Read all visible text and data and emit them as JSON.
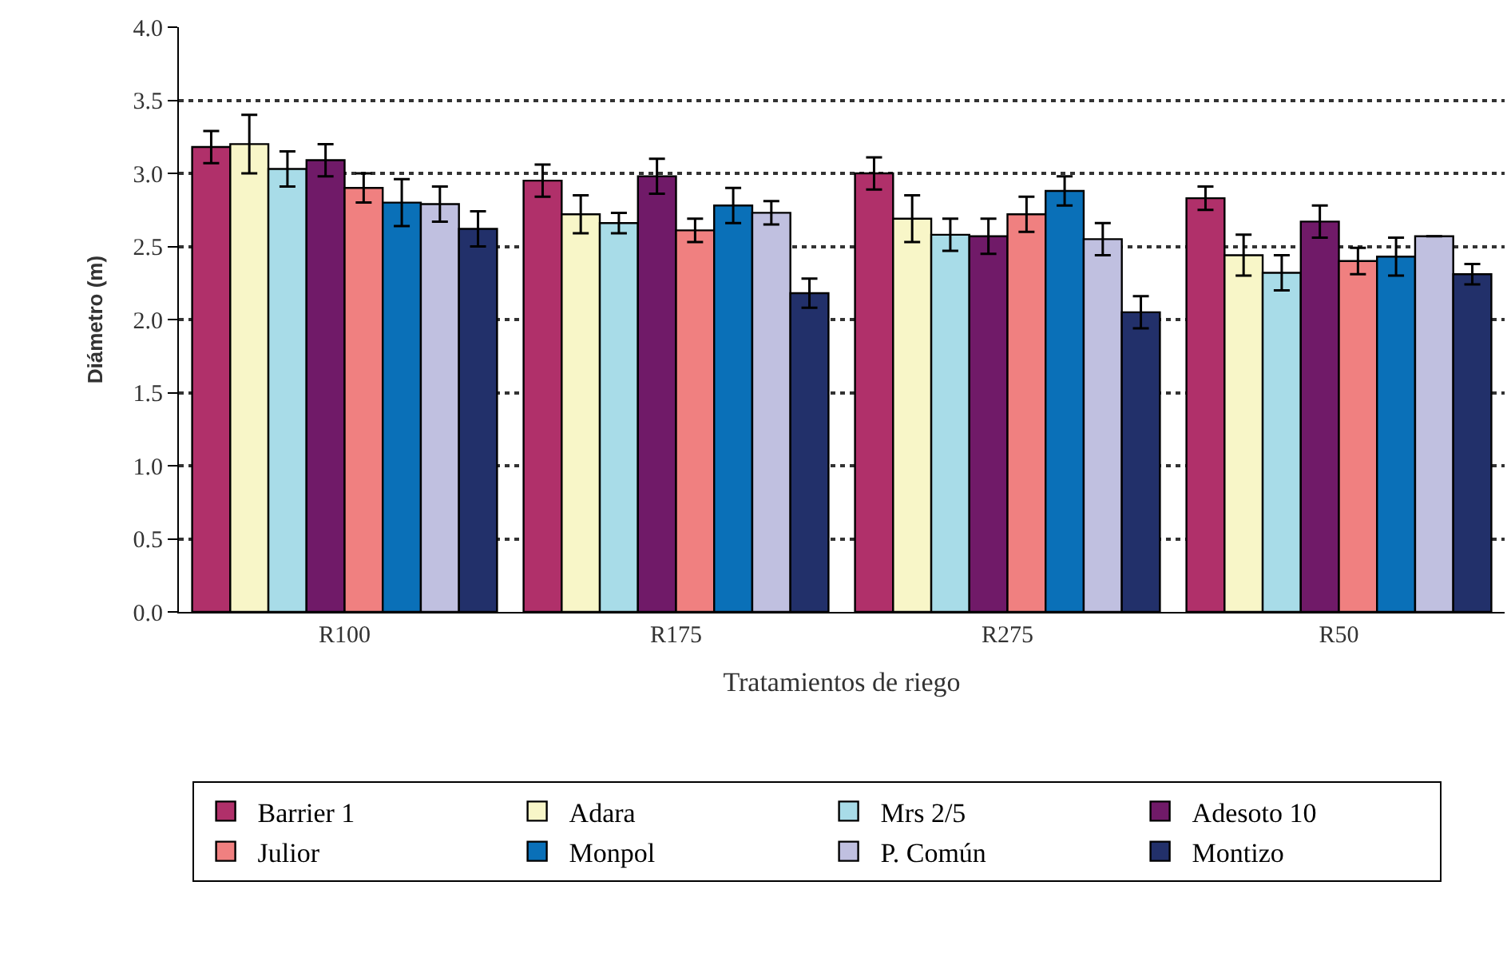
{
  "chart_data": {
    "type": "bar",
    "xlabel": "Tratamientos de riego",
    "ylabel": "Diámetro (m)",
    "categories": [
      "R100",
      "R175",
      "R275",
      "R50"
    ],
    "ylim": [
      0,
      4
    ],
    "yticks": [
      {
        "value": 0,
        "label": "0.0"
      },
      {
        "value": 0.5,
        "label": "0.5"
      },
      {
        "value": 1,
        "label": "1.0"
      },
      {
        "value": 1.5,
        "label": "1.5"
      },
      {
        "value": 2,
        "label": "2.0"
      },
      {
        "value": 2.5,
        "label": "2.5"
      },
      {
        "value": 3,
        "label": "3.0"
      },
      {
        "value": 3.5,
        "label": "3.5"
      },
      {
        "value": 4,
        "label": "4.0"
      }
    ],
    "grid": "y",
    "line_style": "dotted",
    "legend": "bottom",
    "series": [
      {
        "name": "Barrier 1",
        "color": "#b0306a",
        "values": [
          3.18,
          2.95,
          3.0,
          2.83
        ],
        "errors": [
          0.11,
          0.11,
          0.11,
          0.08
        ]
      },
      {
        "name": "Adara",
        "color": "#f8f6c8",
        "values": [
          3.2,
          2.72,
          2.69,
          2.44
        ],
        "errors": [
          0.2,
          0.13,
          0.16,
          0.14
        ]
      },
      {
        "name": "Mrs 2/5",
        "color": "#a8dce8",
        "values": [
          3.03,
          2.66,
          2.58,
          2.32
        ],
        "errors": [
          0.12,
          0.07,
          0.11,
          0.12
        ]
      },
      {
        "name": "Adesoto 10",
        "color": "#701a68",
        "values": [
          3.09,
          2.98,
          2.57,
          2.67
        ],
        "errors": [
          0.11,
          0.12,
          0.12,
          0.11
        ]
      },
      {
        "name": "Julior",
        "color": "#f08080",
        "values": [
          2.9,
          2.61,
          2.72,
          2.4
        ],
        "errors": [
          0.1,
          0.08,
          0.12,
          0.09
        ]
      },
      {
        "name": "Monpol",
        "color": "#0a70b8",
        "values": [
          2.8,
          2.78,
          2.88,
          2.43
        ],
        "errors": [
          0.16,
          0.12,
          0.1,
          0.13
        ]
      },
      {
        "name": "P. Común",
        "color": "#c0c0e0",
        "values": [
          2.79,
          2.73,
          2.55,
          2.57
        ],
        "errors": [
          0.12,
          0.08,
          0.11,
          null
        ]
      },
      {
        "name": "Montizo",
        "color": "#22306a",
        "values": [
          2.62,
          2.18,
          2.05,
          2.31
        ],
        "errors": [
          0.12,
          0.1,
          0.11,
          0.07
        ]
      }
    ]
  }
}
